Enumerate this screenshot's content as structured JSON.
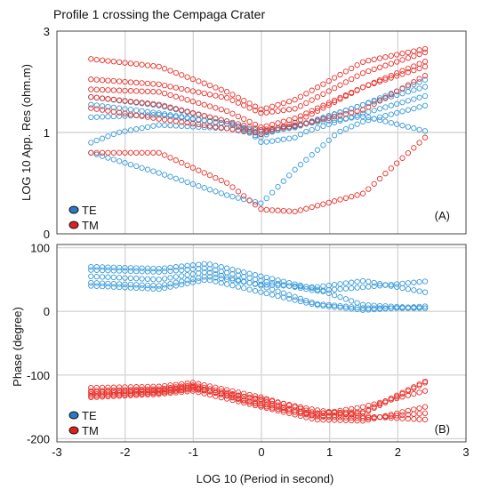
{
  "title": "Profile 1 crossing the Cempaga Crater",
  "xlabel": "LOG 10 (Period in second)",
  "colors": {
    "TE": "#3a9bd9",
    "TM": "#e8322c",
    "legend_TE_fill": "#2a78c8",
    "legend_TM_fill": "#e02020"
  },
  "chart_data": [
    {
      "type": "scatter",
      "panel": "(A)",
      "ylabel": "LOG 10 App. Res (ohm.m)",
      "xlim": [
        -3,
        3
      ],
      "ylim": [
        0,
        3
      ],
      "xticks": [
        "-3",
        "-2",
        "-1",
        "0",
        "1",
        "2",
        "3"
      ],
      "yticks": [
        "0",
        "1",
        "3"
      ],
      "ytick_values": [
        0,
        1,
        3
      ],
      "legend": [
        "TE",
        "TM"
      ],
      "legend_position": "bottom-left",
      "x_range": [
        -2.5,
        2.4
      ],
      "series": [
        {
          "name": "TE",
          "curves": [
            {
              "x": [
                -2.5,
                -1.5,
                -0.5,
                0,
                0.5,
                1.5,
                2.4
              ],
              "y": [
                0.9,
                1.15,
                1.08,
                0.95,
                1.15,
                1.32,
                1.03
              ]
            },
            {
              "x": [
                -2.5,
                -1.5,
                -0.5,
                0,
                0.5,
                1.5,
                2.4
              ],
              "y": [
                0.8,
                0.6,
                0.38,
                0.3,
                0.64,
                1.22,
                1.53
              ]
            },
            {
              "x": [
                -2.5,
                -1.5,
                -0.5,
                0,
                0.5,
                1.5,
                2.4
              ],
              "y": [
                1.3,
                1.35,
                1.17,
                1.02,
                1.1,
                1.55,
                1.9
              ]
            },
            {
              "x": [
                -2.5,
                -1.5,
                -0.5,
                0,
                0.5,
                1.5,
                2.4
              ],
              "y": [
                1.55,
                1.38,
                1.17,
                0.98,
                1.12,
                1.55,
                2.04
              ]
            },
            {
              "x": [
                -2.5,
                -1.5,
                -0.5,
                0,
                0.5,
                1.5,
                2.4
              ],
              "y": [
                1.7,
                1.53,
                1.22,
                0.9,
                0.95,
                1.38,
                1.72
              ]
            }
          ]
        },
        {
          "name": "TM",
          "curves": [
            {
              "x": [
                -2.5,
                -1.5,
                -0.5,
                0,
                0.5,
                1.5,
                2.4
              ],
              "y": [
                0.8,
                0.8,
                0.5,
                0.24,
                0.22,
                0.4,
                0.95
              ]
            },
            {
              "x": [
                -2.5,
                -1.5,
                -0.5,
                0,
                0.5,
                1.5,
                2.4
              ],
              "y": [
                2.45,
                2.3,
                1.8,
                1.45,
                1.65,
                2.4,
                2.65
              ]
            },
            {
              "x": [
                -2.5,
                -1.5,
                -0.5,
                0,
                0.5,
                1.5,
                2.4
              ],
              "y": [
                1.85,
                1.8,
                1.42,
                1.1,
                1.28,
                1.9,
                2.4
              ]
            },
            {
              "x": [
                -2.5,
                -1.5,
                -0.5,
                0,
                0.5,
                1.5,
                2.4
              ],
              "y": [
                1.7,
                1.55,
                1.22,
                1.05,
                1.13,
                1.45,
                2.12
              ]
            },
            {
              "x": [
                -2.5,
                -1.5,
                -0.5,
                0,
                0.5,
                1.5,
                2.4
              ],
              "y": [
                1.48,
                1.27,
                1.08,
                0.98,
                1.2,
                1.9,
                2.3
              ]
            },
            {
              "x": [
                -2.5,
                -1.5,
                -0.5,
                0,
                0.5,
                1.5,
                2.4
              ],
              "y": [
                2.05,
                1.95,
                1.68,
                1.38,
                1.47,
                2.18,
                2.58
              ]
            }
          ]
        }
      ]
    },
    {
      "type": "scatter",
      "panel": "(B)",
      "ylabel": "Phase (degree)",
      "xlim": [
        -3,
        3
      ],
      "ylim": [
        -205,
        105
      ],
      "xticks": [
        "-3",
        "-2",
        "-1",
        "0",
        "1",
        "2",
        "3"
      ],
      "yticks": [
        "100",
        "0",
        "-100",
        "-200"
      ],
      "ytick_values": [
        100,
        0,
        -100,
        -200
      ],
      "legend": [
        "TE",
        "TM"
      ],
      "legend_position": "bottom-left",
      "x_range": [
        -2.5,
        2.4
      ],
      "series": [
        {
          "name": "TE",
          "curves": [
            {
              "x": [
                -2.5,
                -1.5,
                -0.8,
                0,
                0.8,
                1.5,
                2.4
              ],
              "y": [
                70,
                67,
                75,
                55,
                35,
                10,
                5
              ]
            },
            {
              "x": [
                -2.5,
                -1.5,
                -0.8,
                0,
                0.8,
                1.5,
                2.4
              ],
              "y": [
                65,
                62,
                68,
                48,
                32,
                38,
                47
              ]
            },
            {
              "x": [
                -2.5,
                -1.5,
                -0.8,
                0,
                0.8,
                1.5,
                2.4
              ],
              "y": [
                55,
                50,
                62,
                40,
                12,
                5,
                5
              ]
            },
            {
              "x": [
                -2.5,
                -1.5,
                -0.8,
                0,
                0.8,
                1.5,
                2.4
              ],
              "y": [
                45,
                40,
                55,
                42,
                38,
                48,
                30
              ]
            },
            {
              "x": [
                -2.5,
                -1.5,
                -0.8,
                0,
                0.8,
                1.5,
                2.4
              ],
              "y": [
                40,
                35,
                50,
                30,
                10,
                2,
                8
              ]
            }
          ]
        },
        {
          "name": "TM",
          "curves": [
            {
              "x": [
                -2.5,
                -1.5,
                -1,
                0,
                0.8,
                1.5,
                2.4
              ],
              "y": [
                -120,
                -118,
                -112,
                -135,
                -160,
                -158,
                -110
              ]
            },
            {
              "x": [
                -2.5,
                -1.5,
                -1,
                0,
                0.8,
                1.5,
                2.4
              ],
              "y": [
                -125,
                -122,
                -116,
                -140,
                -165,
                -160,
                -112
              ]
            },
            {
              "x": [
                -2.5,
                -1.5,
                -1,
                0,
                0.8,
                1.5,
                2.4
              ],
              "y": [
                -130,
                -126,
                -120,
                -145,
                -162,
                -150,
                -125
              ]
            },
            {
              "x": [
                -2.5,
                -1.5,
                -1,
                0,
                0.8,
                1.5,
                2.4
              ],
              "y": [
                -135,
                -130,
                -125,
                -150,
                -170,
                -172,
                -150
              ]
            },
            {
              "x": [
                -2.5,
                -1.5,
                -1,
                0,
                0.8,
                1.5,
                2.4
              ],
              "y": [
                -127,
                -124,
                -118,
                -148,
                -165,
                -168,
                -160
              ]
            },
            {
              "x": [
                -2.5,
                -1.5,
                -1,
                0,
                0.8,
                1.5,
                2.4
              ],
              "y": [
                -133,
                -128,
                -122,
                -138,
                -155,
                -165,
                -170
              ]
            }
          ]
        }
      ]
    }
  ]
}
